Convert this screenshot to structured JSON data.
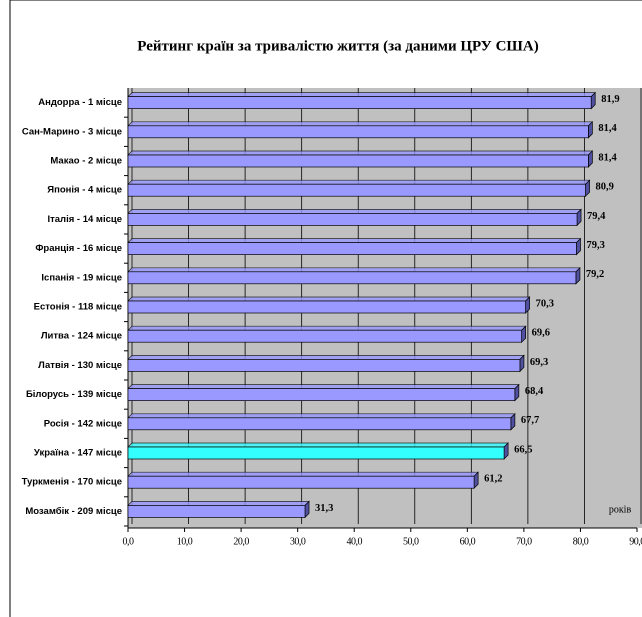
{
  "chart_data": {
    "type": "bar",
    "orientation": "horizontal",
    "title": "Рейтинг країн за тривалістю життя (за даними ЦРУ США)",
    "xlabel": "років",
    "categories": [
      "Андорра - 1 місце",
      "Сан-Марино - 3 місце",
      "Макао - 2 місце",
      "Японія - 4 місце",
      "Італія - 14 місце",
      "Франція - 16 місце",
      "Іспанія - 19 місце",
      "Естонія - 118 місце",
      "Литва - 124 місце",
      "Латвія - 130 місце",
      "Білорусь - 139 місце",
      "Росія - 142 місце",
      "Україна - 147 місце",
      "Туркменія - 170 місце",
      "Мозамбік - 209 місце"
    ],
    "values": [
      81.9,
      81.4,
      81.4,
      80.9,
      79.4,
      79.3,
      79.2,
      70.3,
      69.6,
      69.3,
      68.4,
      67.7,
      66.5,
      61.2,
      31.3
    ],
    "value_labels": [
      "81,9",
      "81,4",
      "81,4",
      "80,9",
      "79,4",
      "79,3",
      "79,2",
      "70,3",
      "69,6",
      "69,3",
      "68,4",
      "67,7",
      "66,5",
      "61,2",
      "31,3"
    ],
    "colors": [
      "#9999ff",
      "#9999ff",
      "#9999ff",
      "#9999ff",
      "#9999ff",
      "#9999ff",
      "#9999ff",
      "#9999ff",
      "#9999ff",
      "#9999ff",
      "#9999ff",
      "#9999ff",
      "#33ffff",
      "#9999ff",
      "#9999ff"
    ],
    "xlim": [
      0,
      90
    ],
    "xticks": [
      {
        "value": 0,
        "label": "0,0"
      },
      {
        "value": 10,
        "label": "10,0"
      },
      {
        "value": 20,
        "label": "20,0"
      },
      {
        "value": 30,
        "label": "30,0"
      },
      {
        "value": 40,
        "label": "40,0"
      },
      {
        "value": 50,
        "label": "50,0"
      },
      {
        "value": 60,
        "label": "60,0"
      },
      {
        "value": 70,
        "label": "70,0"
      },
      {
        "value": 80,
        "label": "80,0"
      },
      {
        "value": 90,
        "label": "90,0"
      }
    ],
    "grid": true
  }
}
